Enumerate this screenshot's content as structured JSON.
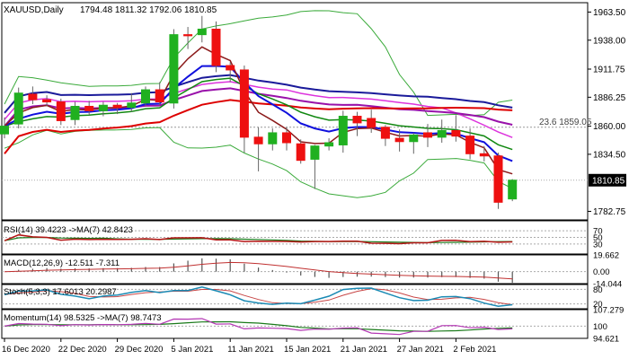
{
  "chart_data": {
    "type": "candlestick",
    "symbol_timeframe": "XAUUSD,Daily",
    "ohlc_header": "1794.48 1811.32 1792.06 1810.85",
    "y_ticks": [
      "1963.50",
      "1938.00",
      "1911.75",
      "1886.25",
      "1860.00",
      "1834.50",
      "1782.75"
    ],
    "ylim": [
      1775,
      1972
    ],
    "x_labels": [
      "16 Dec 2020",
      "22 Dec 2020",
      "29 Dec 2020",
      "5 Jan 2021",
      "11 Jan 2021",
      "15 Jan 2021",
      "21 Jan 2021",
      "27 Jan 2021",
      "2 Feb 2021"
    ],
    "last_price": "1810.85",
    "fib_label": "23.6 1859.05",
    "fib_value": 1859.05,
    "candles": [
      [
        1853,
        1868,
        1849,
        1860
      ],
      [
        1862,
        1895,
        1858,
        1890
      ],
      [
        1889,
        1896,
        1880,
        1884
      ],
      [
        1884,
        1888,
        1878,
        1882
      ],
      [
        1882,
        1885,
        1861,
        1865
      ],
      [
        1866,
        1882,
        1861,
        1878
      ],
      [
        1878,
        1883,
        1870,
        1874
      ],
      [
        1874,
        1882,
        1869,
        1879
      ],
      [
        1879,
        1881,
        1871,
        1877
      ],
      [
        1877,
        1890,
        1873,
        1881
      ],
      [
        1881,
        1896,
        1878,
        1893
      ],
      [
        1893,
        1900,
        1879,
        1882
      ],
      [
        1881,
        1948,
        1876,
        1943
      ],
      [
        1943,
        1950,
        1930,
        1942
      ],
      [
        1943,
        1960,
        1936,
        1948
      ],
      [
        1948,
        1955,
        1909,
        1915
      ],
      [
        1915,
        1918,
        1900,
        1911
      ],
      [
        1911,
        1915,
        1836,
        1850
      ],
      [
        1850,
        1859,
        1819,
        1844
      ],
      [
        1844,
        1858,
        1838,
        1854
      ],
      [
        1854,
        1859,
        1838,
        1845
      ],
      [
        1844,
        1848,
        1826,
        1829
      ],
      [
        1830,
        1843,
        1803,
        1842
      ],
      [
        1842,
        1849,
        1838,
        1845
      ],
      [
        1843,
        1874,
        1836,
        1869
      ],
      [
        1869,
        1873,
        1851,
        1863
      ],
      [
        1867,
        1875,
        1854,
        1859
      ],
      [
        1859,
        1861,
        1842,
        1849
      ],
      [
        1849,
        1857,
        1837,
        1846
      ],
      [
        1846,
        1854,
        1835,
        1852
      ],
      [
        1854,
        1862,
        1841,
        1850
      ],
      [
        1850,
        1866,
        1845,
        1856
      ],
      [
        1856,
        1870,
        1846,
        1851
      ],
      [
        1851,
        1858,
        1830,
        1835
      ],
      [
        1835,
        1842,
        1828,
        1833
      ],
      [
        1833,
        1836,
        1785,
        1791
      ],
      [
        1794,
        1812,
        1792,
        1811
      ]
    ],
    "indicators": {
      "rsi": {
        "label": "RSI(14) 39.4223 ->MA(7) 42.8423",
        "ticks": [
          "70",
          "50",
          "30"
        ],
        "range": [
          0,
          100
        ],
        "levels": [
          70,
          50,
          30
        ]
      },
      "macd": {
        "label": "MACD(12,26,9) -12.511 -7.311",
        "ticks": [
          "19.662",
          "0.00",
          "-14.044"
        ],
        "range": [
          -14.044,
          19.662
        ]
      },
      "stoch": {
        "label": "Stoch(5,3,3) 17.6013 20.2987",
        "ticks": [
          "80",
          "20"
        ],
        "range": [
          0,
          100
        ],
        "levels": [
          80,
          20
        ]
      },
      "momentum": {
        "label": "Momentum(14) 98.5325 ->MA(7) 98.7473",
        "ticks": [
          "107.279",
          "100",
          "94.621"
        ],
        "range": [
          94.621,
          107.279
        ],
        "levels": [
          100
        ]
      }
    },
    "colors": {
      "bull": "#20b020",
      "bear": "#ee1010",
      "bollinger": "#3aaa3a",
      "ma_fast": "#8b1a1a",
      "ma_blue": "#1010dd",
      "ma_green": "#118811",
      "ma_magenta": "#dd33dd",
      "ma_purple": "#9911aa",
      "ma_red": "#dd0000",
      "ma_navy": "#1a1a9a",
      "grid": "#b8b8b8",
      "rsi_line": "#b41414",
      "rsi_ma": "#1a7a1a",
      "stoch_k": "#1a8ab4",
      "stoch_d": "#c84646",
      "mom_line": "#b437b4",
      "mom_ma": "#1a7a1a",
      "macd_hist": "#555555",
      "macd_signal": "#c03030"
    }
  }
}
